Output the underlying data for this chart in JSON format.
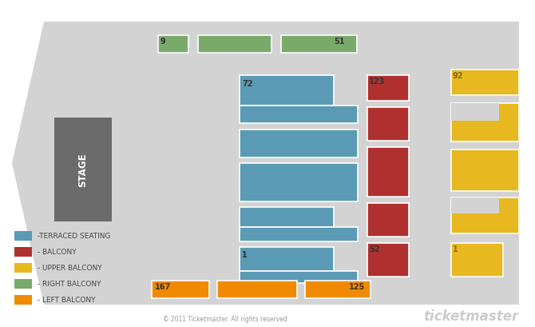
{
  "bg_color": "#d3d3d3",
  "stage_color": "#6b6b6b",
  "terraced_color": "#5b9ab5",
  "balcony_color": "#b03030",
  "upper_balcony_color": "#e8b820",
  "right_balcony_color": "#7aaa6a",
  "left_balcony_color": "#f08a00",
  "copyright": "© 2011 Ticketmaster. All rights reserved",
  "ticketmaster_text": "ticketmaster",
  "legend_items": [
    {
      "color": "#5b9ab5",
      "label": " -TERRACED SEATING"
    },
    {
      "color": "#b03030",
      "label": " - BALCONY"
    },
    {
      "color": "#e8b820",
      "label": " - UPPER BALCONY"
    },
    {
      "color": "#7aaa6a",
      "label": " - RIGHT BALCONY"
    },
    {
      "color": "#f08a00",
      "label": " - LEFT BALCONY"
    }
  ]
}
